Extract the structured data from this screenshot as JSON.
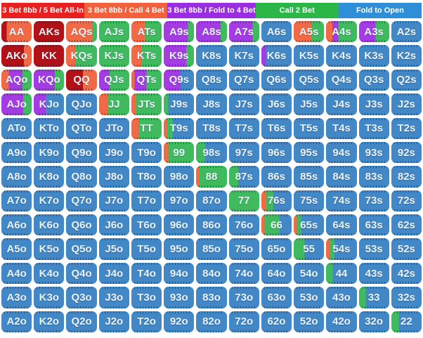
{
  "chart_data": {
    "type": "heatmap",
    "title": "Preflop poker hand range matrix (13x13), cells split horizontally by action frequency %",
    "legend_position": "top",
    "default_action": "fold",
    "actions": [
      {
        "key": "allin",
        "label": "3 Bet 8bb / 5 Bet All-In",
        "legend_color": "#e82020",
        "cell_color": "#b21217"
      },
      {
        "key": "call4",
        "label": "3 Bet 8bb / Call 4 Bet",
        "legend_color": "#f2603c",
        "cell_color": "#f26a45"
      },
      {
        "key": "fold4",
        "label": "3 Bet 8bb / Fold to 4 Bet",
        "legend_color": "#9a2ce2",
        "cell_color": "#a43ce4"
      },
      {
        "key": "call2",
        "label": "Call 2 Bet",
        "legend_color": "#2bb748",
        "cell_color": "#3fba5f"
      },
      {
        "key": "fold",
        "label": "Fold to Open",
        "legend_color": "#2e8ed8",
        "cell_color": "#4287c6"
      }
    ],
    "rows": [
      [
        [
          "AA",
          [
            [
              "allin",
              18
            ],
            [
              "call4",
              82
            ]
          ]
        ],
        [
          "AKs",
          [
            [
              "allin",
              100
            ]
          ]
        ],
        [
          "AQs",
          [
            [
              "call4",
              85
            ],
            [
              "call2",
              15
            ]
          ]
        ],
        [
          "AJs",
          [
            [
              "call2",
              100
            ]
          ]
        ],
        [
          "ATs",
          [
            [
              "call4",
              45
            ],
            [
              "call2",
              55
            ]
          ]
        ],
        [
          "A9s",
          [
            [
              "fold4",
              80
            ],
            [
              "call2",
              20
            ]
          ]
        ],
        [
          "A8s",
          [
            [
              "fold4",
              80
            ],
            [
              "call2",
              20
            ]
          ]
        ],
        [
          "A7s",
          [
            [
              "fold4",
              78
            ],
            [
              "call2",
              22
            ]
          ]
        ],
        [
          "A6s"
        ],
        [
          "A5s",
          [
            [
              "call4",
              58
            ],
            [
              "call2",
              42
            ]
          ]
        ],
        [
          "A4s",
          [
            [
              "call4",
              20
            ],
            [
              "fold4",
              20
            ],
            [
              "call2",
              60
            ]
          ]
        ],
        [
          "A3s",
          [
            [
              "fold4",
              55
            ],
            [
              "call2",
              45
            ]
          ]
        ],
        [
          "A2s"
        ]
      ],
      [
        [
          "AKo",
          [
            [
              "allin",
              75
            ],
            [
              "call4",
              25
            ]
          ]
        ],
        [
          "KK",
          [
            [
              "allin",
              100
            ]
          ]
        ],
        [
          "KQs",
          [
            [
              "call4",
              30
            ],
            [
              "call2",
              70
            ]
          ]
        ],
        [
          "KJs",
          [
            [
              "call2",
              100
            ]
          ]
        ],
        [
          "KTs",
          [
            [
              "call4",
              35
            ],
            [
              "call2",
              65
            ]
          ]
        ],
        [
          "K9s",
          [
            [
              "fold4",
              75
            ],
            [
              "call2",
              25
            ]
          ]
        ],
        [
          "K8s"
        ],
        [
          "K7s"
        ],
        [
          "K6s",
          [
            [
              "fold4",
              15
            ],
            [
              "fold",
              85
            ]
          ]
        ],
        [
          "K5s"
        ],
        [
          "K4s"
        ],
        [
          "K3s"
        ],
        [
          "K2s"
        ]
      ],
      [
        [
          "AQo",
          [
            [
              "call4",
              25
            ],
            [
              "fold4",
              45
            ],
            [
              "call2",
              30
            ]
          ]
        ],
        [
          "KQo",
          [
            [
              "fold4",
              70
            ],
            [
              "call2",
              30
            ]
          ]
        ],
        [
          "QQ",
          [
            [
              "allin",
              55
            ],
            [
              "call4",
              45
            ]
          ]
        ],
        [
          "QJs",
          [
            [
              "fold4",
              35
            ],
            [
              "call2",
              65
            ]
          ]
        ],
        [
          "QTs",
          [
            [
              "call4",
              10
            ],
            [
              "fold4",
              40
            ],
            [
              "call2",
              50
            ]
          ]
        ],
        [
          "Q9s",
          [
            [
              "fold4",
              55
            ],
            [
              "fold",
              45
            ]
          ]
        ],
        [
          "Q8s"
        ],
        [
          "Q7s"
        ],
        [
          "Q6s"
        ],
        [
          "Q5s"
        ],
        [
          "Q4s"
        ],
        [
          "Q3s"
        ],
        [
          "Q2s"
        ]
      ],
      [
        [
          "AJo",
          [
            [
              "fold4",
              72
            ],
            [
              "call2",
              28
            ]
          ]
        ],
        [
          "KJo",
          [
            [
              "fold4",
              40
            ],
            [
              "fold",
              60
            ]
          ]
        ],
        [
          "QJo"
        ],
        [
          "JJ",
          [
            [
              "call4",
              30
            ],
            [
              "call2",
              70
            ]
          ]
        ],
        [
          "JTs",
          [
            [
              "call4",
              15
            ],
            [
              "call2",
              85
            ]
          ]
        ],
        [
          "J9s",
          [
            [
              "call2",
              15
            ],
            [
              "fold",
              85
            ]
          ]
        ],
        [
          "J8s"
        ],
        [
          "J7s"
        ],
        [
          "J6s"
        ],
        [
          "J5s"
        ],
        [
          "J4s"
        ],
        [
          "J3s"
        ],
        [
          "J2s"
        ]
      ],
      [
        [
          "ATo"
        ],
        [
          "KTo"
        ],
        [
          "QTo"
        ],
        [
          "JTo"
        ],
        [
          "TT",
          [
            [
              "call4",
              25
            ],
            [
              "call2",
              75
            ]
          ]
        ],
        [
          "T9s",
          [
            [
              "call4",
              12
            ],
            [
              "call2",
              18
            ],
            [
              "fold",
              70
            ]
          ]
        ],
        [
          "T8s"
        ],
        [
          "T7s"
        ],
        [
          "T6s"
        ],
        [
          "T5s"
        ],
        [
          "T4s"
        ],
        [
          "T3s"
        ],
        [
          "T2s"
        ]
      ],
      [
        [
          "A9o"
        ],
        [
          "K9o"
        ],
        [
          "Q9o"
        ],
        [
          "J9o"
        ],
        [
          "T9o"
        ],
        [
          "99",
          [
            [
              "call4",
              15
            ],
            [
              "call2",
              85
            ]
          ]
        ],
        [
          "98s",
          [
            [
              "call2",
              30
            ],
            [
              "fold",
              70
            ]
          ]
        ],
        [
          "97s"
        ],
        [
          "96s"
        ],
        [
          "95s"
        ],
        [
          "94s"
        ],
        [
          "93s"
        ],
        [
          "92s"
        ]
      ],
      [
        [
          "A8o"
        ],
        [
          "K8o"
        ],
        [
          "Q8o"
        ],
        [
          "J8o"
        ],
        [
          "T8o"
        ],
        [
          "98o"
        ],
        [
          "88",
          [
            [
              "call4",
              10
            ],
            [
              "call2",
              90
            ]
          ]
        ],
        [
          "87s",
          [
            [
              "call2",
              30
            ],
            [
              "fold",
              70
            ]
          ]
        ],
        [
          "86s"
        ],
        [
          "85s"
        ],
        [
          "84s"
        ],
        [
          "83s"
        ],
        [
          "82s"
        ]
      ],
      [
        [
          "A7o"
        ],
        [
          "K7o"
        ],
        [
          "Q7o"
        ],
        [
          "J7o"
        ],
        [
          "T7o"
        ],
        [
          "97o"
        ],
        [
          "87o"
        ],
        [
          "77",
          [
            [
              "call2",
              100
            ]
          ]
        ],
        [
          "76s",
          [
            [
              "call4",
              15
            ],
            [
              "call2",
              25
            ],
            [
              "fold",
              60
            ]
          ]
        ],
        [
          "75s"
        ],
        [
          "74s"
        ],
        [
          "73s"
        ],
        [
          "72s"
        ]
      ],
      [
        [
          "A6o"
        ],
        [
          "K6o"
        ],
        [
          "Q6o"
        ],
        [
          "J6o"
        ],
        [
          "T6o"
        ],
        [
          "96o"
        ],
        [
          "86o"
        ],
        [
          "76o"
        ],
        [
          "66",
          [
            [
              "call4",
              10
            ],
            [
              "call2",
              50
            ],
            [
              "fold",
              40
            ]
          ]
        ],
        [
          "65s",
          [
            [
              "call4",
              10
            ],
            [
              "call2",
              15
            ],
            [
              "fold",
              75
            ]
          ]
        ],
        [
          "64s"
        ],
        [
          "63s"
        ],
        [
          "62s"
        ]
      ],
      [
        [
          "A5o"
        ],
        [
          "K5o"
        ],
        [
          "Q5o"
        ],
        [
          "J5o"
        ],
        [
          "T5o"
        ],
        [
          "95o"
        ],
        [
          "85o"
        ],
        [
          "75o"
        ],
        [
          "65o"
        ],
        [
          "55",
          [
            [
              "call2",
              35
            ],
            [
              "fold",
              65
            ]
          ]
        ],
        [
          "54s",
          [
            [
              "call4",
              12
            ],
            [
              "call2",
              15
            ],
            [
              "fold",
              73
            ]
          ]
        ],
        [
          "53s"
        ],
        [
          "52s"
        ]
      ],
      [
        [
          "A4o"
        ],
        [
          "K4o"
        ],
        [
          "Q4o"
        ],
        [
          "J4o"
        ],
        [
          "T4o"
        ],
        [
          "94o"
        ],
        [
          "84o"
        ],
        [
          "74o"
        ],
        [
          "64o"
        ],
        [
          "54o"
        ],
        [
          "44",
          [
            [
              "call2",
              22
            ],
            [
              "fold",
              78
            ]
          ]
        ],
        [
          "43s"
        ],
        [
          "42s"
        ]
      ],
      [
        [
          "A3o"
        ],
        [
          "K3o"
        ],
        [
          "Q3o"
        ],
        [
          "J3o"
        ],
        [
          "T3o"
        ],
        [
          "93o"
        ],
        [
          "83o"
        ],
        [
          "73o"
        ],
        [
          "63o"
        ],
        [
          "53o"
        ],
        [
          "43o"
        ],
        [
          "33",
          [
            [
              "call2",
              22
            ],
            [
              "fold",
              78
            ]
          ]
        ],
        [
          "32s"
        ]
      ],
      [
        [
          "A2o"
        ],
        [
          "K2o"
        ],
        [
          "Q2o"
        ],
        [
          "J2o"
        ],
        [
          "T2o"
        ],
        [
          "92o"
        ],
        [
          "82o"
        ],
        [
          "72o"
        ],
        [
          "62o"
        ],
        [
          "52o"
        ],
        [
          "42o"
        ],
        [
          "32o"
        ],
        [
          "22",
          [
            [
              "call2",
              25
            ],
            [
              "fold",
              75
            ]
          ]
        ]
      ]
    ]
  }
}
